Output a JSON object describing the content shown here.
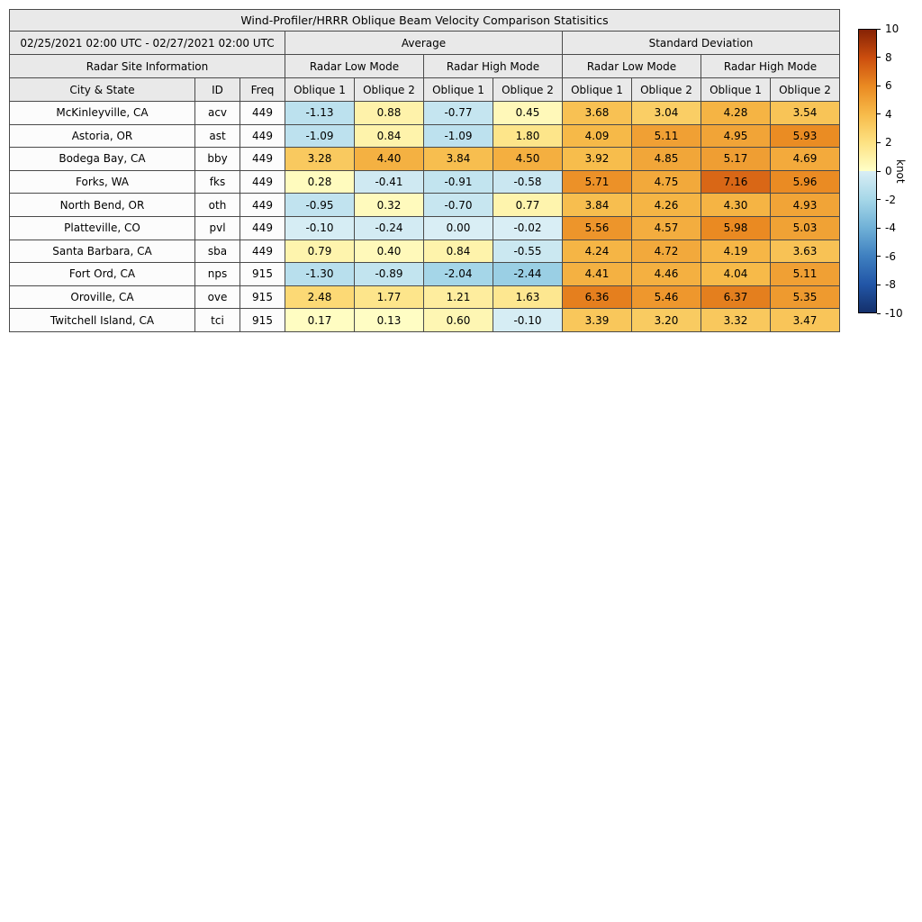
{
  "chart_data": {
    "type": "heatmap-table",
    "title": "Wind-Profiler/HRRR Oblique Beam Velocity Comparison Statisitics",
    "date_range": "02/25/2021 02:00 UTC - 02/27/2021 02:00 UTC",
    "site_info_header": "Radar Site Information",
    "section_headers": [
      "Average",
      "Standard Deviation"
    ],
    "mode_headers": [
      "Radar Low Mode",
      "Radar High Mode"
    ],
    "info_columns": [
      "City & State",
      "ID",
      "Freq"
    ],
    "oblique_labels": [
      "Oblique 1",
      "Oblique 2"
    ],
    "rows": [
      {
        "city": "McKinleyville, CA",
        "id": "acv",
        "freq": "449",
        "values": [
          -1.13,
          0.88,
          -0.77,
          0.45,
          3.68,
          3.04,
          4.28,
          3.54
        ]
      },
      {
        "city": "Astoria, OR",
        "id": "ast",
        "freq": "449",
        "values": [
          -1.09,
          0.84,
          -1.09,
          1.8,
          4.09,
          5.11,
          4.95,
          5.93
        ]
      },
      {
        "city": "Bodega Bay, CA",
        "id": "bby",
        "freq": "449",
        "values": [
          3.28,
          4.4,
          3.84,
          4.5,
          3.92,
          4.85,
          5.17,
          4.69
        ]
      },
      {
        "city": "Forks, WA",
        "id": "fks",
        "freq": "449",
        "values": [
          0.28,
          -0.41,
          -0.91,
          -0.58,
          5.71,
          4.75,
          7.16,
          5.96
        ]
      },
      {
        "city": "North Bend, OR",
        "id": "oth",
        "freq": "449",
        "values": [
          -0.95,
          0.32,
          -0.7,
          0.77,
          3.84,
          4.26,
          4.3,
          4.93
        ]
      },
      {
        "city": "Platteville, CO",
        "id": "pvl",
        "freq": "449",
        "values": [
          -0.1,
          -0.24,
          0.0,
          -0.02,
          5.56,
          4.57,
          5.98,
          5.03
        ]
      },
      {
        "city": "Santa Barbara, CA",
        "id": "sba",
        "freq": "449",
        "values": [
          0.79,
          0.4,
          0.84,
          -0.55,
          4.24,
          4.72,
          4.19,
          3.63
        ]
      },
      {
        "city": "Fort Ord, CA",
        "id": "nps",
        "freq": "915",
        "values": [
          -1.3,
          -0.89,
          -2.04,
          -2.44,
          4.41,
          4.46,
          4.04,
          5.11
        ]
      },
      {
        "city": "Oroville, CA",
        "id": "ove",
        "freq": "915",
        "values": [
          2.48,
          1.77,
          1.21,
          1.63,
          6.36,
          5.46,
          6.37,
          5.35
        ]
      },
      {
        "city": "Twitchell Island, CA",
        "id": "tci",
        "freq": "915",
        "values": [
          0.17,
          0.13,
          0.6,
          -0.1,
          3.39,
          3.2,
          3.32,
          3.47
        ]
      }
    ],
    "colorbar": {
      "label": "knot",
      "min": -10,
      "max": 10,
      "ticks": [
        10,
        8,
        6,
        4,
        2,
        0,
        -2,
        -4,
        -6,
        -8,
        -10
      ],
      "gradient_stops": [
        {
          "v": -10,
          "c": "#14306b"
        },
        {
          "v": -8,
          "c": "#2256a7"
        },
        {
          "v": -6,
          "c": "#3f80c0"
        },
        {
          "v": -4,
          "c": "#70b1d7"
        },
        {
          "v": -2,
          "c": "#a6d7e8"
        },
        {
          "v": -0.001,
          "c": "#d9eef5"
        },
        {
          "v": 0.001,
          "c": "#ffffc8"
        },
        {
          "v": 2,
          "c": "#fde283"
        },
        {
          "v": 4,
          "c": "#f7bb4a"
        },
        {
          "v": 6,
          "c": "#ea8a22"
        },
        {
          "v": 8,
          "c": "#cc4e0e"
        },
        {
          "v": 10,
          "c": "#862205"
        }
      ]
    },
    "theme": {
      "header_bg": "#e9e9e9",
      "info_bg": "#fcfcfc",
      "border": "#4a4a4a"
    }
  }
}
